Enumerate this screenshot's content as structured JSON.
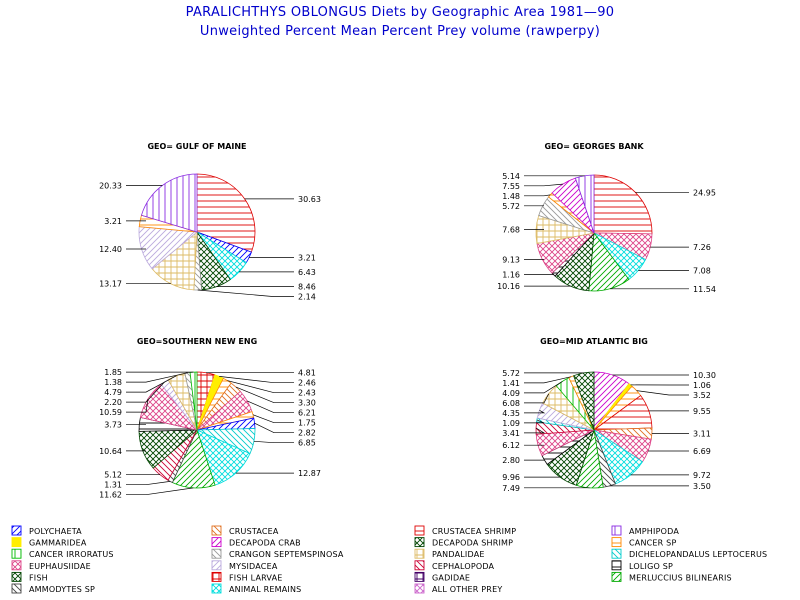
{
  "title": "PARALICHTHYS OBLONGUS Diets by Geographic Area 1981—90",
  "subtitle": "Unweighted Percent Mean Percent Prey  volume (rawperpy)",
  "categories": [
    {
      "key": "polychaeta",
      "label": "POLYCHAETA",
      "color": "#0000ff",
      "pattern": "forward"
    },
    {
      "key": "crustacea",
      "label": "CRUSTACEA",
      "color": "#e07020",
      "pattern": "back"
    },
    {
      "key": "crustacea_shrimp",
      "label": "CRUSTACEA SHRIMP",
      "color": "#dd0000",
      "pattern": "horizontal"
    },
    {
      "key": "amphipoda",
      "label": "AMPHIPODA",
      "color": "#8a2be2",
      "pattern": "vertical"
    },
    {
      "key": "gammaridea",
      "label": "GAMMARIDEA",
      "color": "#ffee00",
      "pattern": "solid"
    },
    {
      "key": "decapoda_crab",
      "label": "DECAPODA CRAB",
      "color": "#cc00cc",
      "pattern": "forward"
    },
    {
      "key": "decapoda_shrimp",
      "label": "DECAPODA SHRIMP",
      "color": "#004400",
      "pattern": "cross"
    },
    {
      "key": "cancer_sp",
      "label": "CANCER SP",
      "color": "#ff8800",
      "pattern": "horizontal"
    },
    {
      "key": "cancer_irroratus",
      "label": "CANCER IRRORATUS",
      "color": "#00bb00",
      "pattern": "vertical"
    },
    {
      "key": "crangon",
      "label": "CRANGON SEPTEMSPINOSA",
      "color": "#999999",
      "pattern": "back"
    },
    {
      "key": "pandalidae",
      "label": "PANDALIDAE",
      "color": "#ddbb66",
      "pattern": "grid"
    },
    {
      "key": "dichelopandalus",
      "label": "DICHELOPANDALUS LEPTOCERUS",
      "color": "#00cccc",
      "pattern": "back"
    },
    {
      "key": "euphausiidae",
      "label": "EUPHAUSIIDAE",
      "color": "#dd4488",
      "pattern": "cross"
    },
    {
      "key": "mysidacea",
      "label": "MYSIDACEA",
      "color": "#bbaadd",
      "pattern": "forward"
    },
    {
      "key": "cephalopoda",
      "label": "CEPHALOPODA",
      "color": "#cc0033",
      "pattern": "back"
    },
    {
      "key": "loligo",
      "label": "LOLIGO SP",
      "color": "#000000",
      "pattern": "horizontal"
    },
    {
      "key": "fish",
      "label": "FISH",
      "color": "#004400",
      "pattern": "cross"
    },
    {
      "key": "fish_larvae",
      "label": "FISH LARVAE",
      "color": "#dd0000",
      "pattern": "grid"
    },
    {
      "key": "gadidae",
      "label": "GADIDAE",
      "color": "#440066",
      "pattern": "grid"
    },
    {
      "key": "merluccius",
      "label": "MERLUCCIUS BILINEARIS",
      "color": "#00aa00",
      "pattern": "forward"
    },
    {
      "key": "ammodytes",
      "label": "AMMODYTES SP",
      "color": "#444444",
      "pattern": "back"
    },
    {
      "key": "animal_remains",
      "label": "ANIMAL REMAINS",
      "color": "#00dddd",
      "pattern": "cross"
    },
    {
      "key": "all_other",
      "label": "ALL OTHER PREY",
      "color": "#cc66cc",
      "pattern": "cross"
    }
  ],
  "chart_data": [
    {
      "type": "pie",
      "title": "GEO= GULF OF MAINE",
      "slices": [
        {
          "category": "crustacea_shrimp",
          "value": 30.63,
          "label": "30.63"
        },
        {
          "category": "polychaeta",
          "value": 3.21,
          "label": "3.21"
        },
        {
          "category": "animal_remains",
          "value": 6.43,
          "label": "6.43"
        },
        {
          "category": "fish",
          "value": 8.46,
          "label": "8.46"
        },
        {
          "category": "crangon",
          "value": 2.14,
          "label": "2.14"
        },
        {
          "category": "pandalidae",
          "value": 13.17,
          "label": "13.17"
        },
        {
          "category": "mysidacea",
          "value": 12.4,
          "label": "12.40"
        },
        {
          "category": "cancer_sp",
          "value": 3.21,
          "label": "3.21"
        },
        {
          "category": "amphipoda",
          "value": 20.33,
          "label": "20.33"
        }
      ]
    },
    {
      "type": "pie",
      "title": "GEO= GEORGES BANK",
      "slices": [
        {
          "category": "crustacea_shrimp",
          "value": 24.95,
          "label": "24.95"
        },
        {
          "category": "euphausiidae",
          "value": 7.26,
          "label": "7.26"
        },
        {
          "category": "animal_remains",
          "value": 7.08,
          "label": "7.08"
        },
        {
          "category": "merluccius",
          "value": 11.54,
          "label": "11.54"
        },
        {
          "category": "fish",
          "value": 10.16,
          "label": "10.16"
        },
        {
          "category": "loligo",
          "value": 1.16,
          "label": "1.16"
        },
        {
          "category": "euphausiidae",
          "value": 9.13,
          "label": "9.13"
        },
        {
          "category": "pandalidae",
          "value": 7.68,
          "label": "7.68"
        },
        {
          "category": "crangon",
          "value": 5.72,
          "label": "5.72"
        },
        {
          "category": "cancer_sp",
          "value": 1.48,
          "label": "1.48"
        },
        {
          "category": "decapoda_crab",
          "value": 7.55,
          "label": "7.55"
        },
        {
          "category": "amphipoda",
          "value": 5.14,
          "label": "5.14"
        }
      ]
    },
    {
      "type": "pie",
      "title": "GEO=SOUTHERN NEW ENG",
      "slices": [
        {
          "category": "fish_larvae",
          "value": 4.81,
          "label": "4.81"
        },
        {
          "category": "gammaridea",
          "value": 2.46,
          "label": "2.46"
        },
        {
          "category": "cancer_sp",
          "value": 2.43,
          "label": "2.43"
        },
        {
          "category": "crustacea",
          "value": 3.3,
          "label": "3.30"
        },
        {
          "category": "euphausiidae",
          "value": 6.21,
          "label": "6.21"
        },
        {
          "category": "cancer_sp",
          "value": 1.75,
          "label": "1.75"
        },
        {
          "category": "polychaeta",
          "value": 2.82,
          "label": "2.82"
        },
        {
          "category": "dichelopandalus",
          "value": 6.85,
          "label": "6.85"
        },
        {
          "category": "animal_remains",
          "value": 12.87,
          "label": "12.87"
        },
        {
          "category": "merluccius",
          "value": 11.62,
          "label": "11.62"
        },
        {
          "category": "ammodytes",
          "value": 1.31,
          "label": "1.31"
        },
        {
          "category": "cephalopoda",
          "value": 5.12,
          "label": "5.12"
        },
        {
          "category": "fish",
          "value": 10.64,
          "label": "10.64"
        },
        {
          "category": "loligo",
          "value": 3.73,
          "label": "3.73"
        },
        {
          "category": "euphausiidae",
          "value": 10.59,
          "label": "10.59"
        },
        {
          "category": "mysidacea",
          "value": 2.2,
          "label": "2.20"
        },
        {
          "category": "pandalidae",
          "value": 4.79,
          "label": "4.79"
        },
        {
          "category": "crangon",
          "value": 1.38,
          "label": "1.38"
        },
        {
          "category": "cancer_irroratus",
          "value": 1.85,
          "label": "1.85"
        }
      ]
    },
    {
      "type": "pie",
      "title": "GEO=MID ATLANTIC BIG",
      "slices": [
        {
          "category": "decapoda_crab",
          "value": 10.3,
          "label": "10.30"
        },
        {
          "category": "gammaridea",
          "value": 1.06,
          "label": "1.06"
        },
        {
          "category": "cancer_sp",
          "value": 3.52,
          "label": "3.52"
        },
        {
          "category": "crustacea_shrimp",
          "value": 9.55,
          "label": "9.55"
        },
        {
          "category": "crustacea",
          "value": 3.11,
          "label": "3.11"
        },
        {
          "category": "euphausiidae",
          "value": 6.69,
          "label": "6.69"
        },
        {
          "category": "animal_remains",
          "value": 9.72,
          "label": "9.72"
        },
        {
          "category": "ammodytes",
          "value": 3.5,
          "label": "3.50"
        },
        {
          "category": "merluccius",
          "value": 7.49,
          "label": "7.49"
        },
        {
          "category": "fish",
          "value": 9.96,
          "label": "9.96"
        },
        {
          "category": "loligo",
          "value": 2.8,
          "label": "2.80"
        },
        {
          "category": "euphausiidae",
          "value": 6.12,
          "label": "6.12"
        },
        {
          "category": "cephalopoda",
          "value": 3.41,
          "label": "3.41"
        },
        {
          "category": "dichelopandalus",
          "value": 1.09,
          "label": "1.09"
        },
        {
          "category": "mysidacea",
          "value": 4.35,
          "label": "4.35"
        },
        {
          "category": "pandalidae",
          "value": 6.08,
          "label": "6.08"
        },
        {
          "category": "cancer_irroratus",
          "value": 4.09,
          "label": "4.09"
        },
        {
          "category": "cancer_sp",
          "value": 1.41,
          "label": "1.41"
        },
        {
          "category": "decapoda_shrimp",
          "value": 5.72,
          "label": "5.72"
        }
      ]
    }
  ]
}
